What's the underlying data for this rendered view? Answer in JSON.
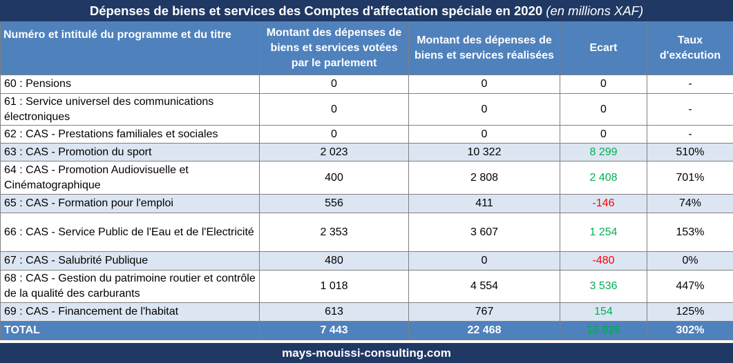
{
  "title": {
    "main": "Dépenses de biens et services des Comptes d'affectation spéciale en 2020",
    "unit": "(en millions XAF)"
  },
  "columns": [
    "Numéro et intitulé du programme et du titre",
    "Montant des dépenses de biens et services votées par le parlement",
    "Montant des dépenses de biens et services réalisées",
    "Ecart",
    "Taux d'exécution"
  ],
  "rows": [
    {
      "label": "60 : Pensions",
      "voted": "0",
      "realized": "0",
      "gap": "0",
      "rate": "-"
    },
    {
      "label": "61 : Service universel des communications électroniques",
      "voted": "0",
      "realized": "0",
      "gap": "0",
      "rate": "-"
    },
    {
      "label": "62 : CAS - Prestations familiales et sociales",
      "voted": "0",
      "realized": "0",
      "gap": "0",
      "rate": "-"
    },
    {
      "label": "63 : CAS - Promotion du sport",
      "voted": "2 023",
      "realized": "10 322",
      "gap": "8 299",
      "rate": "510%"
    },
    {
      "label": "64 : CAS - Promotion Audiovisuelle et Cinématographique",
      "voted": "400",
      "realized": "2 808",
      "gap": "2 408",
      "rate": "701%"
    },
    {
      "label": "65 : CAS - Formation pour l'emploi",
      "voted": "556",
      "realized": "411",
      "gap": "-146",
      "rate": "74%"
    },
    {
      "label": "66 : CAS - Service Public de l'Eau et de l'Electricité",
      "voted": "2 353",
      "realized": "3 607",
      "gap": "1 254",
      "rate": "153%"
    },
    {
      "label": "67 : CAS - Salubrité Publique",
      "voted": "480",
      "realized": "0",
      "gap": "-480",
      "rate": "0%"
    },
    {
      "label": "68 : CAS - Gestion du patrimoine routier et contrôle de la qualité des carburants",
      "voted": "1 018",
      "realized": "4 554",
      "gap": "3 536",
      "rate": "447%"
    },
    {
      "label": "69 : CAS - Financement de l'habitat",
      "voted": "613",
      "realized": "767",
      "gap": "154",
      "rate": "125%"
    }
  ],
  "total": {
    "label": "TOTAL",
    "voted": "7 443",
    "realized": "22 468",
    "gap": "15 025",
    "rate": "302%"
  },
  "footer": "mays-mouissi-consulting.com",
  "colors": {
    "dark_navy": "#1f3864",
    "header_blue": "#4f81bd",
    "alt_row": "#dce6f2",
    "positive": "#00b050",
    "negative": "#ff0000"
  }
}
